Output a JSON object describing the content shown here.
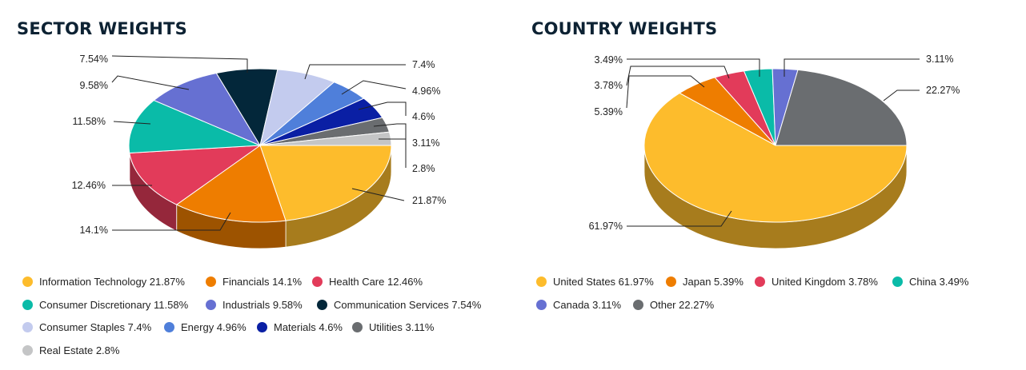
{
  "chart_data": [
    {
      "type": "pie",
      "title": "SECTOR WEIGHTS",
      "slices": [
        {
          "name": "Information Technology",
          "value": 21.87,
          "label": "21.87%",
          "color": "#FDBC2C"
        },
        {
          "name": "Financials",
          "value": 14.1,
          "label": "14.1%",
          "color": "#EE7D00"
        },
        {
          "name": "Health Care",
          "value": 12.46,
          "label": "12.46%",
          "color": "#E23B5A"
        },
        {
          "name": "Consumer Discretionary",
          "value": 11.58,
          "label": "11.58%",
          "color": "#0ABBA8"
        },
        {
          "name": "Industrials",
          "value": 9.58,
          "label": "9.58%",
          "color": "#6670D2"
        },
        {
          "name": "Communication Services",
          "value": 7.54,
          "label": "7.54%",
          "color": "#03273A"
        },
        {
          "name": "Consumer Staples",
          "value": 7.4,
          "label": "7.4%",
          "color": "#C3CBEE"
        },
        {
          "name": "Energy",
          "value": 4.96,
          "label": "4.96%",
          "color": "#4F7FDA"
        },
        {
          "name": "Materials",
          "value": 4.6,
          "label": "4.6%",
          "color": "#0A1FA4"
        },
        {
          "name": "Utilities",
          "value": 3.11,
          "label": "3.11%",
          "color": "#6A6D70"
        },
        {
          "name": "Real Estate",
          "value": 2.8,
          "label": "2.8%",
          "color": "#C4C5C6"
        }
      ],
      "legend": [
        "Information Technology 21.87%",
        "Financials 14.1%",
        "Health Care 12.46%",
        "Consumer Discretionary 11.58%",
        "Industrials 9.58%",
        "Communication Services 7.54%",
        "Consumer Staples 7.4%",
        "Energy 4.96%",
        "Materials 4.6%",
        "Utilities 3.11%",
        "Real Estate 2.8%"
      ],
      "legend_position": "bottom"
    },
    {
      "type": "pie",
      "title": "COUNTRY WEIGHTS",
      "slices": [
        {
          "name": "United States",
          "value": 61.97,
          "label": "61.97%",
          "color": "#FDBC2C"
        },
        {
          "name": "Japan",
          "value": 5.39,
          "label": "5.39%",
          "color": "#EE7D00"
        },
        {
          "name": "United Kingdom",
          "value": 3.78,
          "label": "3.78%",
          "color": "#E23B5A"
        },
        {
          "name": "China",
          "value": 3.49,
          "label": "3.49%",
          "color": "#0ABBA8"
        },
        {
          "name": "Canada",
          "value": 3.11,
          "label": "3.11%",
          "color": "#6670D2"
        },
        {
          "name": "Other",
          "value": 22.27,
          "label": "22.27%",
          "color": "#6A6D70"
        }
      ],
      "legend": [
        "United States 61.97%",
        "Japan 5.39%",
        "United Kingdom 3.78%",
        "China 3.49%",
        "Canada 3.11%",
        "Other 22.27%"
      ],
      "legend_position": "bottom"
    }
  ]
}
